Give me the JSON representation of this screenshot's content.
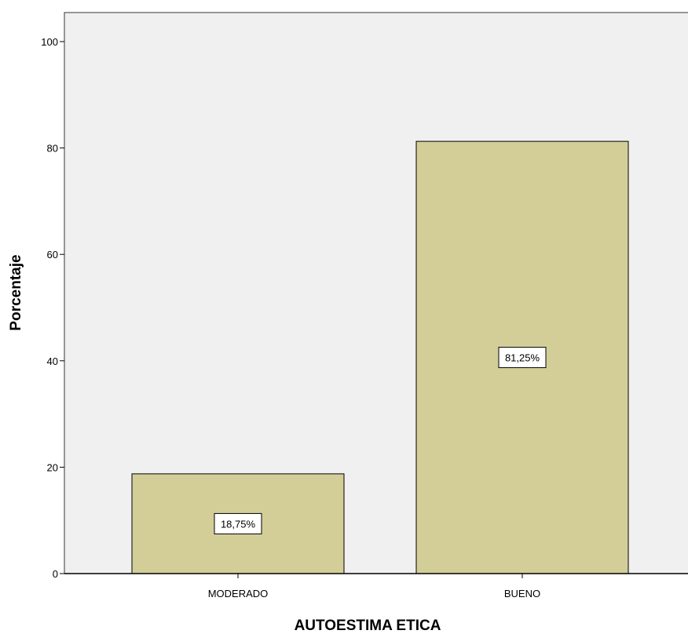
{
  "chart_data": {
    "type": "bar",
    "categories": [
      "MODERADO",
      "BUENO"
    ],
    "values": [
      18.75,
      81.25
    ],
    "data_labels": [
      "18,75%",
      "81,25%"
    ],
    "title": "",
    "xlabel": "AUTOESTIMA ETICA",
    "ylabel": "Porcentaje",
    "ylim": [
      0,
      100
    ],
    "yticks": [
      0,
      20,
      40,
      60,
      80,
      100
    ],
    "grid": false,
    "colors": {
      "bar_fill": "#d3ce98",
      "plot_background": "#f0f0f0",
      "bar_stroke": "#000000"
    }
  }
}
